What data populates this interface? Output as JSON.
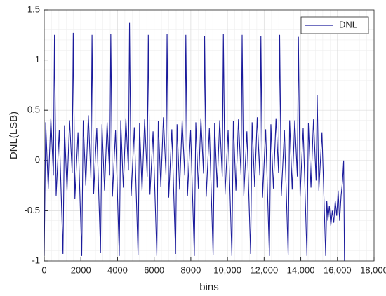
{
  "chart_data": {
    "type": "line",
    "xlabel": "bins",
    "ylabel": "DNL(LSB)",
    "x": [
      0,
      80,
      220,
      360,
      500,
      560,
      650,
      820,
      1024,
      1104,
      1244,
      1384,
      1524,
      1584,
      1674,
      1844,
      2048,
      2128,
      2268,
      2408,
      2548,
      2608,
      2698,
      2868,
      3072,
      3152,
      3292,
      3432,
      3572,
      3632,
      3722,
      3892,
      4096,
      4176,
      4316,
      4456,
      4596,
      4656,
      4746,
      4916,
      5120,
      5200,
      5340,
      5480,
      5620,
      5680,
      5770,
      5940,
      6144,
      6224,
      6364,
      6504,
      6644,
      6704,
      6794,
      6964,
      7168,
      7248,
      7388,
      7528,
      7668,
      7728,
      7818,
      7988,
      8192,
      8272,
      8412,
      8552,
      8692,
      8752,
      8842,
      9012,
      9216,
      9296,
      9436,
      9576,
      9716,
      9776,
      9866,
      10036,
      10240,
      10320,
      10460,
      10600,
      10740,
      10800,
      10890,
      11060,
      11264,
      11344,
      11484,
      11624,
      11764,
      11824,
      11914,
      12084,
      12288,
      12368,
      12508,
      12648,
      12788,
      12848,
      12938,
      13108,
      13312,
      13392,
      13532,
      13672,
      13812,
      13872,
      13962,
      14132,
      14336,
      14416,
      14556,
      14696,
      14836,
      14896,
      14986,
      15156,
      15360,
      15420,
      15480,
      15560,
      15640,
      15720,
      15800,
      15880,
      15960,
      16040,
      16120,
      16200,
      16280,
      16340,
      16384
    ],
    "series": [
      {
        "name": "DNL",
        "color": "#1c1c9c",
        "values": [
          -0.95,
          0.38,
          -0.28,
          0.42,
          -0.15,
          1.25,
          -0.35,
          0.3,
          -0.93,
          0.35,
          -0.3,
          0.4,
          -0.12,
          1.27,
          -0.38,
          0.28,
          -0.95,
          0.4,
          -0.25,
          0.45,
          -0.18,
          1.25,
          -0.33,
          0.32,
          -0.92,
          0.36,
          -0.3,
          0.38,
          -0.15,
          1.26,
          -0.36,
          0.3,
          -0.95,
          0.4,
          -0.27,
          0.42,
          -0.1,
          1.37,
          -0.35,
          0.33,
          -0.94,
          0.37,
          -0.3,
          0.41,
          -0.16,
          1.25,
          -0.34,
          0.29,
          -0.95,
          0.39,
          -0.26,
          0.43,
          -0.14,
          1.26,
          -0.37,
          0.31,
          -0.93,
          0.36,
          -0.29,
          0.4,
          -0.15,
          1.25,
          -0.35,
          0.3,
          -0.95,
          0.38,
          -0.28,
          0.42,
          -0.13,
          1.24,
          -0.36,
          0.32,
          -0.94,
          0.37,
          -0.27,
          0.4,
          -0.16,
          1.26,
          -0.34,
          0.3,
          -0.95,
          0.39,
          -0.3,
          0.41,
          -0.14,
          1.25,
          -0.35,
          0.29,
          -0.93,
          0.38,
          -0.26,
          0.43,
          -0.15,
          1.24,
          -0.37,
          0.31,
          -0.95,
          0.36,
          -0.28,
          0.42,
          -0.12,
          1.25,
          -0.35,
          0.3,
          -0.94,
          0.4,
          -0.29,
          0.4,
          -0.16,
          1.23,
          -0.36,
          0.32,
          -0.95,
          0.37,
          -0.27,
          0.41,
          -0.2,
          0.65,
          -0.3,
          0.28,
          -0.95,
          -0.4,
          -0.6,
          -0.45,
          -0.65,
          -0.5,
          -0.62,
          -0.4,
          -0.55,
          -0.3,
          -0.6,
          -0.35,
          -0.2,
          0.0,
          -1.0
        ]
      }
    ],
    "xlim": [
      0,
      18000
    ],
    "xticks": [
      0,
      2000,
      4000,
      6000,
      8000,
      {
        "value": 10000,
        "label": "10,000"
      },
      {
        "value": 12000,
        "label": "12,000"
      },
      {
        "value": 14000,
        "label": "14,000"
      },
      {
        "value": 16000,
        "label": "16,000"
      },
      {
        "value": 18000,
        "label": "18,000"
      }
    ],
    "ylim": [
      -1,
      1.5
    ],
    "yticks": [
      -1,
      -0.5,
      0,
      0.5,
      1,
      1.5
    ],
    "grid": true,
    "minor_grid": true,
    "legend": "northeast"
  }
}
